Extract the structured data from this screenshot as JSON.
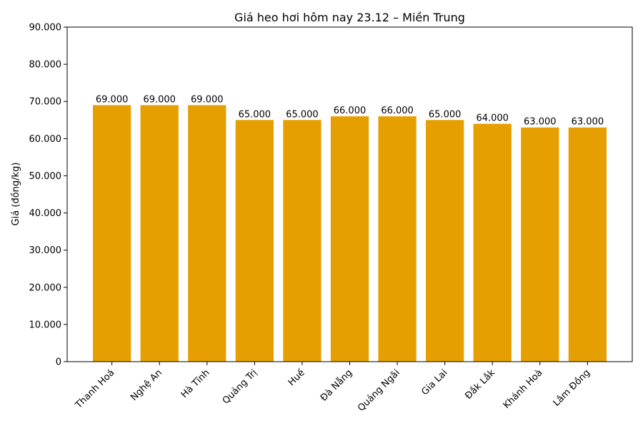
{
  "chart_data": {
    "type": "bar",
    "title": "Giá heo hơi hôm nay 23.12 – Miền Trung",
    "xlabel": "",
    "ylabel": "Giá (đồng/kg)",
    "categories": [
      "Thanh Hoá",
      "Nghệ An",
      "Hà Tĩnh",
      "Quảng Trị",
      "Huế",
      "Đà Nẵng",
      "Quảng Ngãi",
      "Gia Lai",
      "Đắk Lắk",
      "Khánh Hoà",
      "Lâm Đồng"
    ],
    "values": [
      69000,
      69000,
      69000,
      65000,
      65000,
      66000,
      66000,
      65000,
      64000,
      63000,
      63000
    ],
    "data_labels": [
      "69.000",
      "69.000",
      "69.000",
      "65.000",
      "65.000",
      "66.000",
      "66.000",
      "65.000",
      "64.000",
      "63.000",
      "63.000"
    ],
    "ylim": [
      0,
      90000
    ],
    "yticks": [
      0,
      10000,
      20000,
      30000,
      40000,
      50000,
      60000,
      70000,
      80000,
      90000
    ],
    "ytick_labels": [
      "0",
      "10.000",
      "20.000",
      "30.000",
      "40.000",
      "50.000",
      "60.000",
      "70.000",
      "80.000",
      "90.000"
    ],
    "bar_color": "#E69F00",
    "grid": false,
    "legend": "none"
  }
}
